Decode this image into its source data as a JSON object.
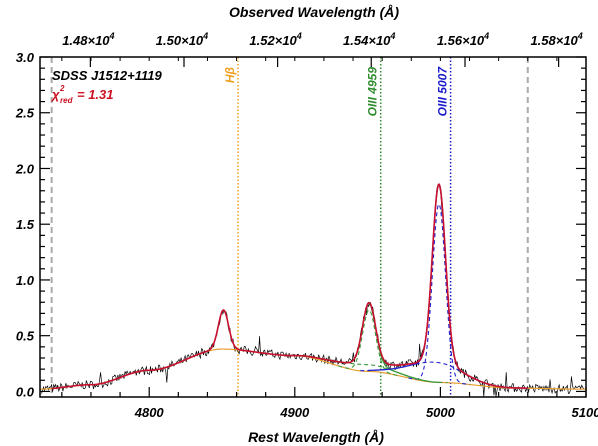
{
  "chart_data": {
    "type": "line",
    "xlabel": "Rest Wavelength (Å)",
    "x2label": "Observed Wavelength (Å)",
    "ylabel": "",
    "xlim": [
      4725,
      5100
    ],
    "ylim": [
      -0.05,
      3.0
    ],
    "x_ticks": [
      4800,
      4900,
      5000,
      5100
    ],
    "y_ticks": [
      0.0,
      0.5,
      1.0,
      1.5,
      2.0,
      2.5,
      3.0
    ],
    "y_tick_labels": [
      "0.0",
      "0.5",
      "1.0",
      "1.5",
      "2.0",
      "2.5",
      "3.0"
    ],
    "top_ticks": [
      {
        "label": "1.48×10",
        "exp": "4",
        "rest": 4759.6
      },
      {
        "label": "1.50×10",
        "exp": "4",
        "rest": 4823.9
      },
      {
        "label": "1.52×10",
        "exp": "4",
        "rest": 4888.2
      },
      {
        "label": "1.54×10",
        "exp": "4",
        "rest": 4952.5
      },
      {
        "label": "1.56×10",
        "exp": "4",
        "rest": 5016.9
      },
      {
        "label": "1.58×10",
        "exp": "4",
        "rest": 5081.2
      }
    ],
    "object_name": "SDSS J1512+1119",
    "chi2_symbol": "χ",
    "chi2_sup": "2",
    "chi2_sub": "red",
    "chi2_value": "= 1.31",
    "line_markers": [
      {
        "label": "Hβ",
        "rest": 4861,
        "color": "#f0a020"
      },
      {
        "label": "OIII 4959",
        "rest": 4959,
        "color": "#2e8b2e"
      },
      {
        "label": "OIII 5007",
        "rest": 5007,
        "color": "#1a1acc"
      }
    ],
    "fit_window": [
      4733,
      5060
    ],
    "colors": {
      "data": "#000000",
      "total_fit": "#c8102e",
      "continuum": "#e8a030",
      "hbeta": "#e8a030",
      "oiii4959": "#3a9a3a",
      "oiii5007": "#2222cc",
      "window": "#aaaaaa"
    },
    "model": {
      "continuum": {
        "x": [
          4725,
          4760,
          4800,
          4850,
          4900,
          4950,
          5000,
          5050,
          5100
        ],
        "y": [
          0.02,
          0.06,
          0.19,
          0.38,
          0.32,
          0.18,
          0.08,
          0.03,
          0.02
        ]
      },
      "hbeta": {
        "center": 4851,
        "amp": 0.35,
        "sigma": 3.5
      },
      "oiii4959": {
        "center": 4951,
        "amp": 0.55,
        "sigma": 4.5,
        "wing_amp": 0.06,
        "wing_sigma": 18
      },
      "oiii5007": {
        "center": 4999,
        "amp": 1.6,
        "sigma": 4.5,
        "wing_amp": 0.18,
        "wing_sigma": 18
      },
      "noise": 0.04
    }
  }
}
